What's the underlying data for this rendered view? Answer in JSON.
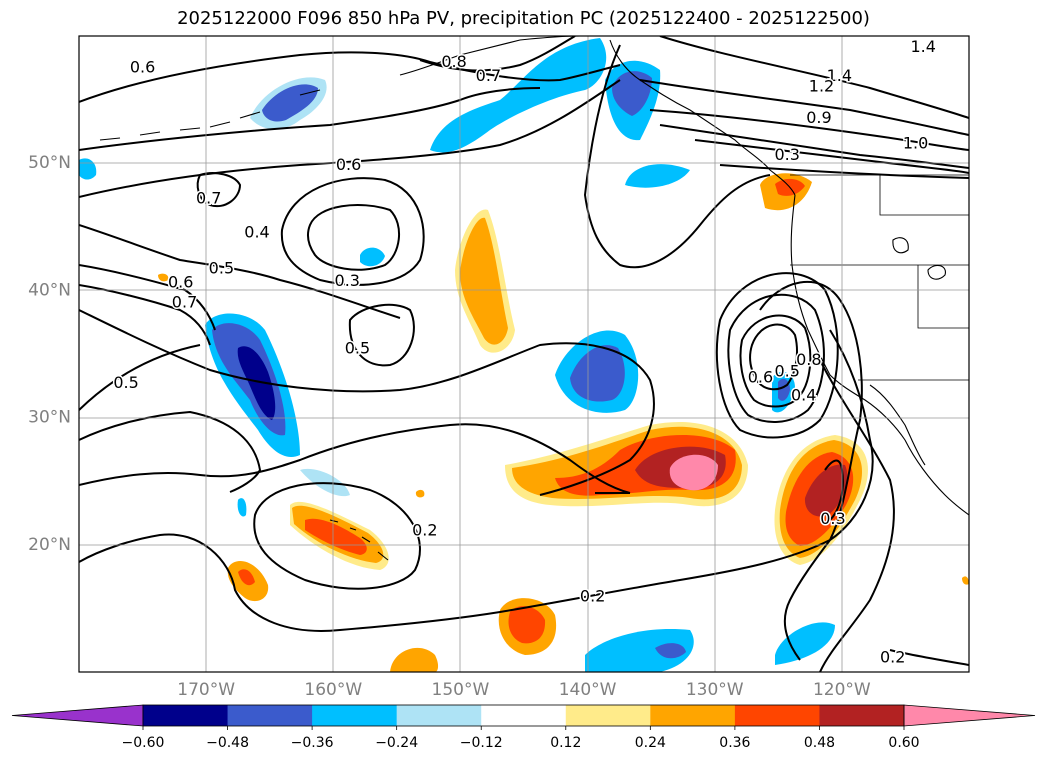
{
  "title": "2025122000 F096 850 hPa PV, precipitation PC (2025122400 - 2025122500)",
  "map": {
    "lat_labels": [
      {
        "lat": 50,
        "label": "50°N"
      },
      {
        "lat": 40,
        "label": "40°N"
      },
      {
        "lat": 30,
        "label": "30°N"
      },
      {
        "lat": 20,
        "label": "20°N"
      }
    ],
    "lon_labels": [
      {
        "lon": -170,
        "label": "170°W"
      },
      {
        "lon": -160,
        "label": "160°W"
      },
      {
        "lon": -150,
        "label": "150°W"
      },
      {
        "lon": -140,
        "label": "140°W"
      },
      {
        "lon": -130,
        "label": "130°W"
      },
      {
        "lon": -120,
        "label": "120°W"
      }
    ],
    "lon_range": [
      -180,
      -110
    ],
    "lat_range": [
      10,
      60
    ],
    "grid": true,
    "gridline_color": "#999999",
    "tick_label_color": "#808080"
  },
  "contours": {
    "labels": [
      {
        "text": "0.6",
        "lon": -175,
        "lat": 57.5
      },
      {
        "text": "0.8",
        "lon": -150.5,
        "lat": 57.9
      },
      {
        "text": "0.7",
        "lon": -147.8,
        "lat": 56.8
      },
      {
        "text": "1.4",
        "lon": -113.6,
        "lat": 59.1
      },
      {
        "text": "1.4",
        "lon": -120.2,
        "lat": 56.8
      },
      {
        "text": "1.2",
        "lon": -121.6,
        "lat": 56.0
      },
      {
        "text": "0.9",
        "lon": -121.8,
        "lat": 53.5
      },
      {
        "text": "1.0",
        "lon": -114.2,
        "lat": 51.5
      },
      {
        "text": "0.3",
        "lon": -124.3,
        "lat": 50.6
      },
      {
        "text": "0.6",
        "lon": -158.8,
        "lat": 49.8
      },
      {
        "text": "0.7",
        "lon": -169.8,
        "lat": 47.2
      },
      {
        "text": "0.4",
        "lon": -166.0,
        "lat": 44.5
      },
      {
        "text": "0.5",
        "lon": -168.8,
        "lat": 41.7
      },
      {
        "text": "0.3",
        "lon": -158.9,
        "lat": 40.7
      },
      {
        "text": "0.6",
        "lon": -172.0,
        "lat": 40.6
      },
      {
        "text": "0.7",
        "lon": -171.7,
        "lat": 39.0
      },
      {
        "text": "0.5",
        "lon": -158.1,
        "lat": 35.4
      },
      {
        "text": "0.5",
        "lon": -176.3,
        "lat": 32.7
      },
      {
        "text": "0.6",
        "lon": -126.4,
        "lat": 33.1
      },
      {
        "text": "0.5",
        "lon": -124.3,
        "lat": 33.6
      },
      {
        "text": "0.8",
        "lon": -122.6,
        "lat": 34.5
      },
      {
        "text": "0.4",
        "lon": -123.0,
        "lat": 31.7
      },
      {
        "text": "0.2",
        "lon": -152.8,
        "lat": 21.1
      },
      {
        "text": "0.3",
        "lon": -120.7,
        "lat": 22.0
      },
      {
        "text": "0.2",
        "lon": -139.6,
        "lat": 15.9
      },
      {
        "text": "0.2",
        "lon": -116.0,
        "lat": 11.1
      }
    ]
  },
  "colorbar": {
    "ticks": [
      "−0.60",
      "−0.48",
      "−0.36",
      "−0.24",
      "−0.12",
      "0.12",
      "0.24",
      "0.36",
      "0.48",
      "0.60"
    ],
    "colors": [
      "#9932cc",
      "#00008b",
      "#3b5bcc",
      "#00bfff",
      "#aee3f5",
      "#ffffff",
      "#ffeb8a",
      "#ffa500",
      "#ff4500",
      "#b22222",
      "#ff88aa"
    ]
  }
}
